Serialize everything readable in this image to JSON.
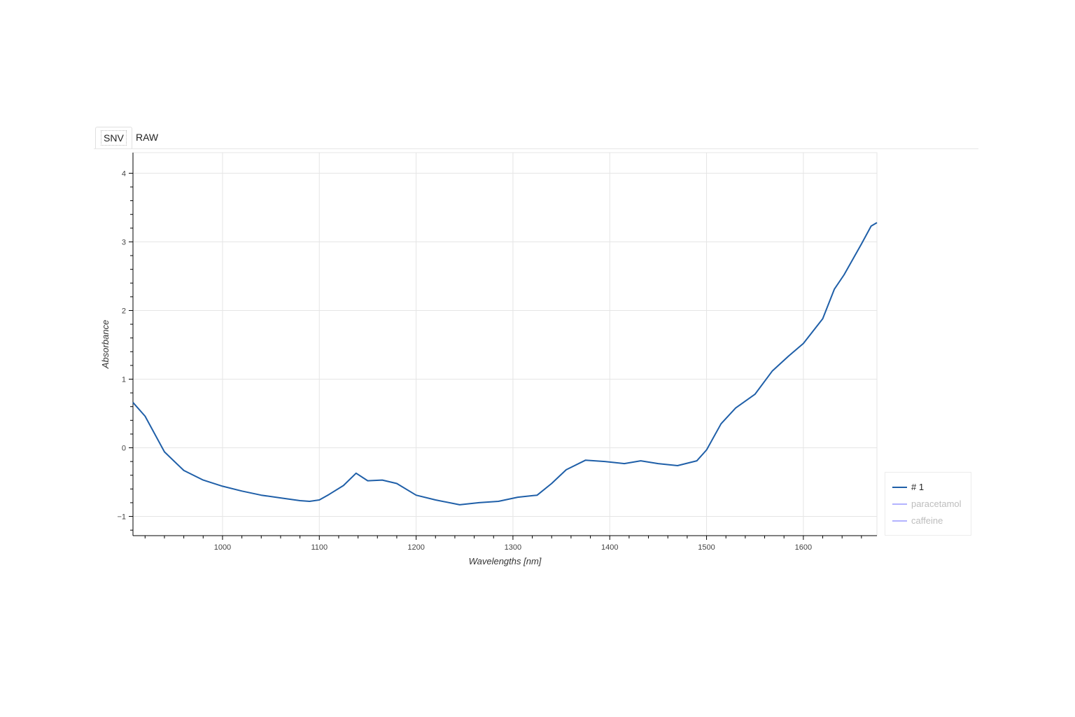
{
  "tabs": [
    {
      "label": "SNV",
      "active": true
    },
    {
      "label": "RAW",
      "active": false
    }
  ],
  "colors": {
    "primary_series": "#1f5fa8",
    "muted_series": "#b3b3ff",
    "muted_text": "#bdbdbd",
    "grid": "#e5e5e5",
    "axis": "#000000"
  },
  "legend": {
    "items": [
      {
        "label": "# 1",
        "muted": false
      },
      {
        "label": "paracetamol",
        "muted": true
      },
      {
        "label": "caffeine",
        "muted": true
      }
    ]
  },
  "chart_data": {
    "type": "line",
    "title": "",
    "xlabel": "Wavelengths [nm]",
    "ylabel": "Absorbance",
    "xlim": [
      907.5,
      1676
    ],
    "ylim": [
      -1.28,
      4.3
    ],
    "x_ticks": [
      1000,
      1100,
      1200,
      1300,
      1400,
      1500,
      1600
    ],
    "y_ticks": [
      -1,
      0,
      1,
      2,
      3,
      4
    ],
    "grid": true,
    "legend_position": "right-bottom",
    "series": [
      {
        "name": "# 1",
        "visible": true,
        "x": [
          907.5,
          920,
          940,
          960,
          980,
          1000,
          1020,
          1040,
          1060,
          1080,
          1090,
          1100,
          1110,
          1125,
          1138,
          1150,
          1165,
          1180,
          1200,
          1220,
          1245,
          1265,
          1285,
          1305,
          1325,
          1340,
          1355,
          1375,
          1395,
          1415,
          1432,
          1450,
          1470,
          1490,
          1500,
          1515,
          1530,
          1550,
          1568,
          1585,
          1600,
          1620,
          1632,
          1642,
          1660,
          1670,
          1676
        ],
        "values": [
          0.66,
          0.46,
          -0.06,
          -0.33,
          -0.47,
          -0.56,
          -0.63,
          -0.69,
          -0.73,
          -0.77,
          -0.78,
          -0.76,
          -0.68,
          -0.55,
          -0.37,
          -0.48,
          -0.47,
          -0.52,
          -0.69,
          -0.76,
          -0.83,
          -0.8,
          -0.78,
          -0.72,
          -0.69,
          -0.52,
          -0.32,
          -0.18,
          -0.2,
          -0.23,
          -0.19,
          -0.23,
          -0.26,
          -0.19,
          -0.03,
          0.35,
          0.58,
          0.78,
          1.12,
          1.34,
          1.52,
          1.88,
          2.31,
          2.52,
          2.97,
          3.23,
          3.28
        ]
      },
      {
        "name": "paracetamol",
        "visible": false,
        "x": [],
        "values": []
      },
      {
        "name": "caffeine",
        "visible": false,
        "x": [],
        "values": []
      }
    ]
  }
}
